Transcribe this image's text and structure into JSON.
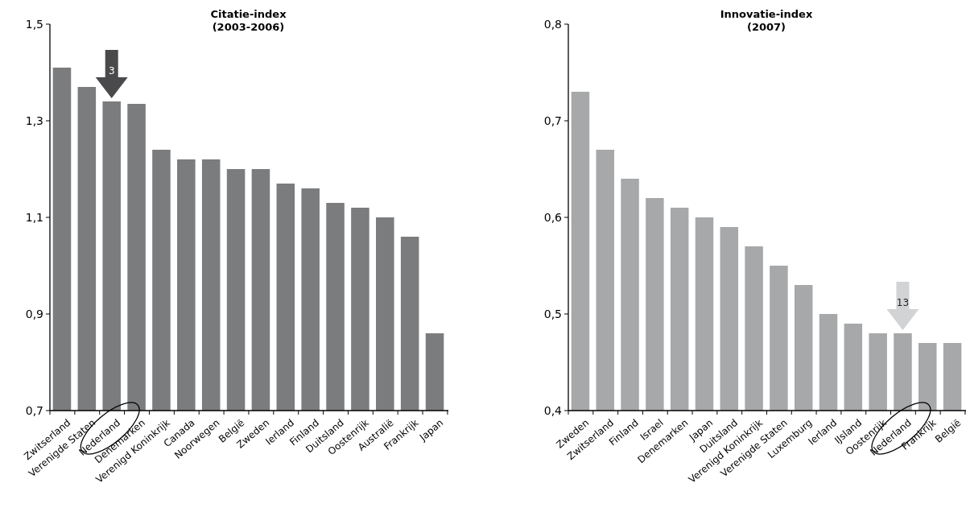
{
  "chart_data": [
    {
      "type": "bar",
      "title": "Citatie-index\n(2003-2006)",
      "categories": [
        "Zwitserland",
        "Verenigde Staten",
        "Nederland",
        "Denemarken",
        "Verenigd Koninkrijk",
        "Canada",
        "Noorwegen",
        "België",
        "Zweden",
        "Ierland",
        "Finland",
        "Duitsland",
        "Oostenrijk",
        "Australië",
        "Frankrijk",
        "Japan"
      ],
      "values": [
        1.41,
        1.37,
        1.34,
        1.335,
        1.24,
        1.22,
        1.22,
        1.2,
        1.2,
        1.17,
        1.16,
        1.13,
        1.12,
        1.1,
        1.06,
        0.86
      ],
      "color": "#7b7c7e",
      "ylim": [
        0.7,
        1.5
      ],
      "yticks": [
        {
          "value": 0.7,
          "label": "0,7"
        },
        {
          "value": 0.9,
          "label": "0,9"
        },
        {
          "value": 1.1,
          "label": "1,1"
        },
        {
          "value": 1.3,
          "label": "1,3"
        },
        {
          "value": 1.5,
          "label": "1,5"
        }
      ],
      "annotations": [
        {
          "text": "3",
          "x": "Nederland",
          "y": 1.34
        }
      ]
    },
    {
      "type": "bar",
      "title": "Innovatie-index\n(2007)",
      "categories": [
        "Zweden",
        "Zwitserland",
        "Finland",
        "Israel",
        "Denemarken",
        "Japan",
        "Duitsland",
        "Verenigd Koninkrijk",
        "Verenigde Staten",
        "Luxemburg",
        "Ierland",
        "IJsland",
        "Oostenrijk",
        "Nederland",
        "Frankrijk",
        "België"
      ],
      "values": [
        0.73,
        0.67,
        0.64,
        0.62,
        0.61,
        0.6,
        0.59,
        0.57,
        0.55,
        0.53,
        0.5,
        0.49,
        0.48,
        0.48,
        0.47,
        0.47
      ],
      "color": "#a7a8aa",
      "ylim": [
        0.4,
        0.8
      ],
      "yticks": [
        {
          "value": 0.4,
          "label": "0,4"
        },
        {
          "value": 0.5,
          "label": "0,5"
        },
        {
          "value": 0.6,
          "label": "0,6"
        },
        {
          "value": 0.7,
          "label": "0,7"
        },
        {
          "value": 0.8,
          "label": "0,8"
        }
      ],
      "annotations": [
        {
          "text": "13",
          "x": "Nederland",
          "y": 0.48
        }
      ]
    }
  ]
}
